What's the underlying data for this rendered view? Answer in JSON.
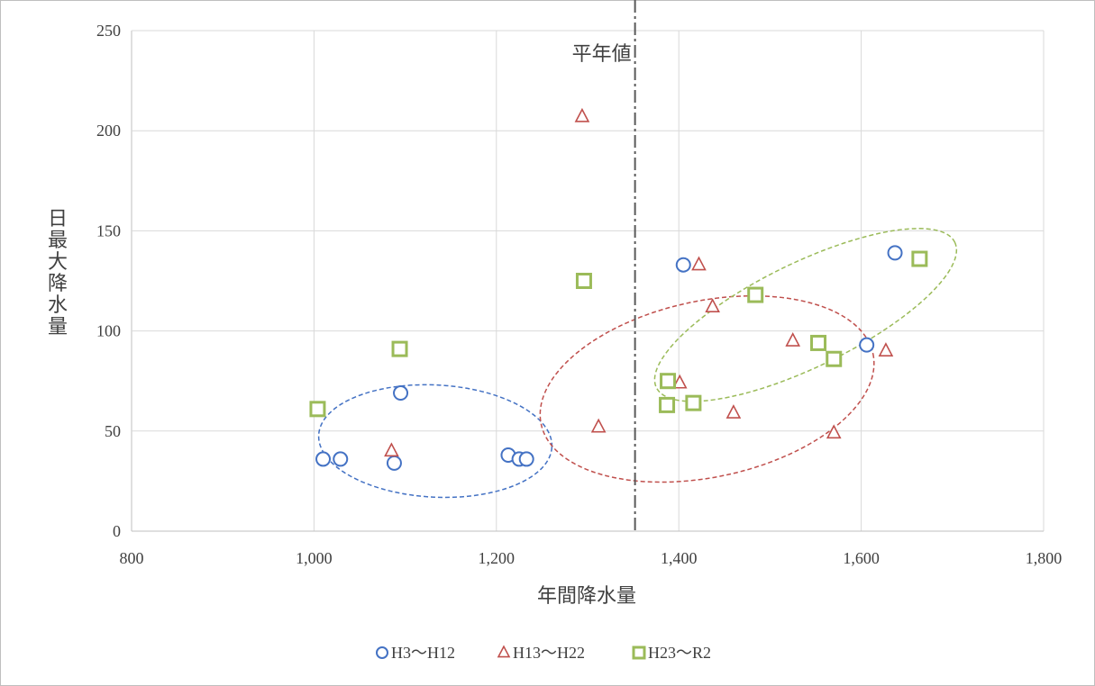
{
  "chart_data": {
    "type": "scatter",
    "title": "",
    "xlabel": "年間降水量",
    "ylabel": "日最大降水量",
    "xlim": [
      800,
      1800
    ],
    "ylim": [
      0,
      250
    ],
    "x_ticks": [
      "800",
      "1,000",
      "1,200",
      "1,400",
      "1,600",
      "1,800"
    ],
    "y_ticks": [
      "0",
      "50",
      "100",
      "150",
      "200",
      "250"
    ],
    "grid": true,
    "legend_position": "bottom",
    "reference_line": {
      "x": 1352,
      "label": "平年値"
    },
    "series": [
      {
        "name": "H3～H12",
        "marker": "circle",
        "color": "#4472c4",
        "points": [
          [
            1010,
            36
          ],
          [
            1029,
            36
          ],
          [
            1088,
            34
          ],
          [
            1095,
            69
          ],
          [
            1213,
            38
          ],
          [
            1225,
            36
          ],
          [
            1233,
            36
          ],
          [
            1405,
            133
          ],
          [
            1606,
            93
          ],
          [
            1637,
            139
          ]
        ]
      },
      {
        "name": "H13～H22",
        "marker": "triangle",
        "color": "#c0504d",
        "points": [
          [
            1085,
            40
          ],
          [
            1294,
            207
          ],
          [
            1312,
            52
          ],
          [
            1401,
            74
          ],
          [
            1422,
            133
          ],
          [
            1437,
            112
          ],
          [
            1460,
            59
          ],
          [
            1525,
            95
          ],
          [
            1570,
            49
          ],
          [
            1627,
            90
          ]
        ]
      },
      {
        "name": "H23～R2",
        "marker": "square",
        "color": "#9bbb59",
        "points": [
          [
            1004,
            61
          ],
          [
            1094,
            91
          ],
          [
            1296,
            125
          ],
          [
            1387,
            63
          ],
          [
            1388,
            75
          ],
          [
            1416,
            64
          ],
          [
            1484,
            118
          ],
          [
            1553,
            94
          ],
          [
            1570,
            86
          ],
          [
            1664,
            136
          ]
        ]
      }
    ],
    "ellipses": [
      {
        "series": "H3～H12",
        "cx": 1133,
        "cy": 45,
        "rx": 128,
        "ry": 28,
        "angle": 3
      },
      {
        "series": "H13～H22",
        "cx": 1431,
        "cy": 71,
        "rx": 186,
        "ry": 44,
        "angle": -12
      },
      {
        "series": "H23～R2",
        "cx": 1539,
        "cy": 108,
        "rx": 182,
        "ry": 26,
        "angle": -26
      }
    ]
  }
}
